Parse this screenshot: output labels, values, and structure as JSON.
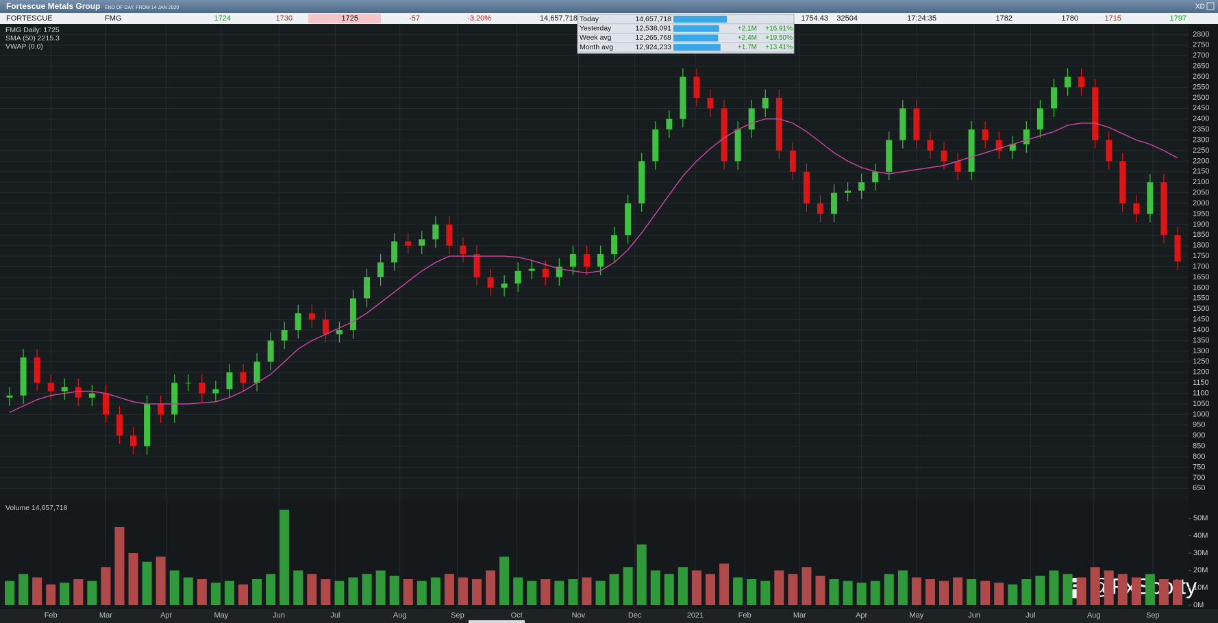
{
  "header": {
    "title": "Fortescue Metals Group",
    "subtitle": "END OF DAY, FROM 14 JAN 2020",
    "corner": "XD",
    "quote": [
      {
        "text": "FORTESCUE",
        "color": "#111111"
      },
      {
        "text": "FMG",
        "color": "#111111"
      },
      {
        "text": "1724",
        "color": "#1a9a1a"
      },
      {
        "text": "1730",
        "color": "#d42020"
      },
      {
        "text": "1725",
        "color": "#111111"
      },
      {
        "text": "-57",
        "color": "#d42020"
      },
      {
        "text": "-3.20%",
        "color": "#d42020"
      },
      {
        "text": "14,657,718",
        "color": "#111111"
      },
      {
        "text": "1754.43",
        "color": "#111111"
      },
      {
        "text": "32504",
        "color": "#111111"
      },
      {
        "text": "17:24:35",
        "color": "#111111"
      },
      {
        "text": "1782",
        "color": "#111111"
      },
      {
        "text": "1780",
        "color": "#111111"
      },
      {
        "text": "1715",
        "color": "#d42020"
      },
      {
        "text": "1797",
        "color": "#1a9a1a"
      }
    ]
  },
  "volume_table": {
    "bar_color": "#3aa8e8",
    "rows": [
      {
        "label": "Today",
        "value": 14657718,
        "value_label": "14,657,718"
      },
      {
        "label": "Yesterday",
        "value": 12538091,
        "value_label": "12,538,091",
        "change": "+2.1M",
        "pct": "+16.91%"
      },
      {
        "label": "Week avg",
        "value": 12265768,
        "value_label": "12,265,768",
        "change": "+2.4M",
        "pct": "+19.50%"
      },
      {
        "label": "Month avg",
        "value": 12924233,
        "value_label": "12,924,233",
        "change": "+1.7M",
        "pct": "+13.41%"
      }
    ]
  },
  "watermark": "@FxScotty",
  "chart_data": {
    "type": "candlestick",
    "legend": [
      "FMG Daily: 1725",
      "SMA (50) 2215.3",
      "VWAP (0.0)"
    ],
    "up_color": "#3fc23f",
    "down_color": "#e01414",
    "grid": true,
    "ylim": [
      625,
      2850
    ],
    "yticks": [
      650,
      700,
      750,
      800,
      850,
      900,
      950,
      1000,
      1050,
      1100,
      1150,
      1200,
      1250,
      1300,
      1350,
      1400,
      1450,
      1500,
      1550,
      1600,
      1650,
      1700,
      1750,
      1800,
      1850,
      1900,
      1950,
      2000,
      2050,
      2100,
      2150,
      2200,
      2250,
      2300,
      2350,
      2400,
      2450,
      2500,
      2550,
      2600,
      2650,
      2700,
      2750,
      2800
    ],
    "xticks": [
      {
        "value": 3.0,
        "label": "Feb"
      },
      {
        "value": 7.0,
        "label": "Mar"
      },
      {
        "value": 11.4,
        "label": "Apr"
      },
      {
        "value": 15.4,
        "label": "May"
      },
      {
        "value": 19.6,
        "label": "Jun"
      },
      {
        "value": 23.7,
        "label": "Jul"
      },
      {
        "value": 28.4,
        "label": "Aug"
      },
      {
        "value": 32.6,
        "label": "Sep"
      },
      {
        "value": 36.9,
        "label": "Oct"
      },
      {
        "value": 41.4,
        "label": "Nov"
      },
      {
        "value": 45.5,
        "label": "Dec"
      },
      {
        "value": 49.9,
        "label": "2021"
      },
      {
        "value": 53.5,
        "label": "Feb"
      },
      {
        "value": 57.5,
        "label": "Mar"
      },
      {
        "value": 62.0,
        "label": "Apr"
      },
      {
        "value": 66.0,
        "label": "May"
      },
      {
        "value": 70.2,
        "label": "Jun"
      },
      {
        "value": 74.3,
        "label": "Jul"
      },
      {
        "value": 78.9,
        "label": "Aug"
      },
      {
        "value": 83.2,
        "label": "Sep"
      }
    ],
    "candles": {
      "open": [
        1080,
        1090,
        1270,
        1150,
        1110,
        1130,
        1080,
        1100,
        1000,
        900,
        850,
        1050,
        1000,
        1150,
        1150,
        1100,
        1120,
        1200,
        1150,
        1250,
        1350,
        1400,
        1480,
        1450,
        1380,
        1400,
        1550,
        1650,
        1720,
        1820,
        1800,
        1830,
        1900,
        1800,
        1760,
        1650,
        1600,
        1620,
        1680,
        1690,
        1650,
        1700,
        1760,
        1700,
        1760,
        1850,
        2000,
        2200,
        2350,
        2400,
        2600,
        2500,
        2450,
        2200,
        2350,
        2450,
        2500,
        2250,
        2150,
        2000,
        1950,
        2050,
        2060,
        2100,
        2150,
        2300,
        2450,
        2300,
        2250,
        2200,
        2150,
        2350,
        2300,
        2250,
        2280,
        2350,
        2450,
        2550,
        2600,
        2550,
        2300,
        2200,
        2000,
        1950,
        2100,
        1850
      ],
      "high": [
        1130,
        1310,
        1310,
        1190,
        1170,
        1170,
        1140,
        1140,
        1040,
        940,
        1090,
        1090,
        1190,
        1190,
        1190,
        1160,
        1240,
        1240,
        1290,
        1390,
        1440,
        1520,
        1520,
        1490,
        1440,
        1590,
        1690,
        1760,
        1860,
        1860,
        1870,
        1940,
        1940,
        1840,
        1800,
        1690,
        1660,
        1720,
        1730,
        1730,
        1740,
        1800,
        1800,
        1800,
        1890,
        2040,
        2240,
        2390,
        2440,
        2640,
        2640,
        2540,
        2490,
        2390,
        2490,
        2540,
        2540,
        2290,
        2190,
        2040,
        2090,
        2100,
        2140,
        2190,
        2340,
        2490,
        2490,
        2340,
        2290,
        2240,
        2390,
        2390,
        2340,
        2320,
        2390,
        2490,
        2590,
        2640,
        2640,
        2590,
        2340,
        2240,
        2040,
        2140,
        2140,
        1890
      ],
      "low": [
        1040,
        1050,
        1110,
        1070,
        1070,
        1040,
        1040,
        960,
        860,
        810,
        810,
        960,
        960,
        1110,
        1060,
        1060,
        1080,
        1110,
        1110,
        1210,
        1310,
        1360,
        1410,
        1340,
        1340,
        1360,
        1510,
        1610,
        1680,
        1760,
        1760,
        1790,
        1760,
        1720,
        1610,
        1560,
        1560,
        1580,
        1640,
        1610,
        1610,
        1660,
        1660,
        1660,
        1720,
        1810,
        1960,
        2160,
        2310,
        2360,
        2460,
        2410,
        2160,
        2160,
        2310,
        2410,
        2210,
        2110,
        1960,
        1910,
        1910,
        2010,
        2020,
        2060,
        2110,
        2260,
        2260,
        2210,
        2160,
        2110,
        2110,
        2260,
        2210,
        2210,
        2240,
        2310,
        2410,
        2510,
        2510,
        2260,
        2160,
        1960,
        1910,
        1910,
        1810,
        1685
      ],
      "close": [
        1090,
        1270,
        1150,
        1110,
        1130,
        1080,
        1100,
        1000,
        900,
        850,
        1050,
        1000,
        1150,
        1150,
        1100,
        1120,
        1200,
        1150,
        1250,
        1350,
        1400,
        1480,
        1450,
        1380,
        1400,
        1550,
        1650,
        1720,
        1820,
        1800,
        1830,
        1900,
        1800,
        1760,
        1650,
        1600,
        1620,
        1680,
        1690,
        1650,
        1700,
        1760,
        1700,
        1760,
        1850,
        2000,
        2200,
        2350,
        2400,
        2600,
        2500,
        2450,
        2200,
        2350,
        2450,
        2500,
        2250,
        2150,
        2000,
        1950,
        2050,
        2060,
        2100,
        2150,
        2300,
        2450,
        2300,
        2250,
        2200,
        2150,
        2350,
        2300,
        2250,
        2280,
        2350,
        2450,
        2550,
        2600,
        2550,
        2300,
        2200,
        2000,
        1950,
        2100,
        1850,
        1725
      ]
    },
    "sma": {
      "color": "#c2469a",
      "values": [
        1010,
        1040,
        1070,
        1090,
        1100,
        1110,
        1110,
        1100,
        1080,
        1060,
        1050,
        1050,
        1050,
        1050,
        1055,
        1060,
        1080,
        1110,
        1150,
        1190,
        1250,
        1310,
        1350,
        1380,
        1410,
        1440,
        1480,
        1530,
        1580,
        1630,
        1680,
        1720,
        1750,
        1750,
        1750,
        1750,
        1750,
        1745,
        1730,
        1710,
        1690,
        1680,
        1670,
        1680,
        1720,
        1780,
        1860,
        1950,
        2040,
        2130,
        2200,
        2260,
        2310,
        2350,
        2380,
        2400,
        2400,
        2380,
        2340,
        2290,
        2240,
        2200,
        2170,
        2150,
        2140,
        2150,
        2160,
        2170,
        2180,
        2200,
        2220,
        2240,
        2260,
        2280,
        2300,
        2320,
        2340,
        2370,
        2380,
        2380,
        2360,
        2330,
        2300,
        2280,
        2250,
        2215.3
      ]
    },
    "volume": {
      "label": "Volume 14,657,718",
      "ylim": [
        0,
        60000000
      ],
      "yticks": [
        {
          "value": 0,
          "label": "0M"
        },
        {
          "value": 10000000,
          "label": "10M"
        },
        {
          "value": 20000000,
          "label": "20M"
        },
        {
          "value": 30000000,
          "label": "30M"
        },
        {
          "value": 40000000,
          "label": "40M"
        },
        {
          "value": 50000000,
          "label": "50M"
        }
      ],
      "values": [
        14000000,
        18000000,
        16000000,
        12000000,
        13000000,
        15000000,
        14000000,
        22000000,
        45000000,
        30000000,
        25000000,
        28000000,
        20000000,
        16000000,
        15000000,
        13000000,
        14000000,
        12000000,
        15000000,
        18000000,
        55000000,
        20000000,
        18000000,
        15000000,
        14000000,
        16000000,
        18000000,
        20000000,
        17000000,
        15000000,
        14000000,
        16000000,
        18000000,
        16000000,
        15000000,
        20000000,
        28000000,
        16000000,
        14000000,
        15000000,
        14000000,
        15000000,
        16000000,
        14000000,
        18000000,
        22000000,
        35000000,
        20000000,
        18000000,
        22000000,
        20000000,
        18000000,
        24000000,
        16000000,
        15000000,
        14000000,
        20000000,
        18000000,
        22000000,
        17000000,
        15000000,
        14000000,
        13000000,
        14000000,
        18000000,
        20000000,
        16000000,
        15000000,
        14000000,
        16000000,
        15000000,
        14000000,
        13000000,
        12000000,
        15000000,
        17000000,
        20000000,
        18000000,
        16000000,
        22000000,
        20000000,
        18000000,
        16000000,
        18000000,
        15000000,
        14657718
      ]
    }
  }
}
